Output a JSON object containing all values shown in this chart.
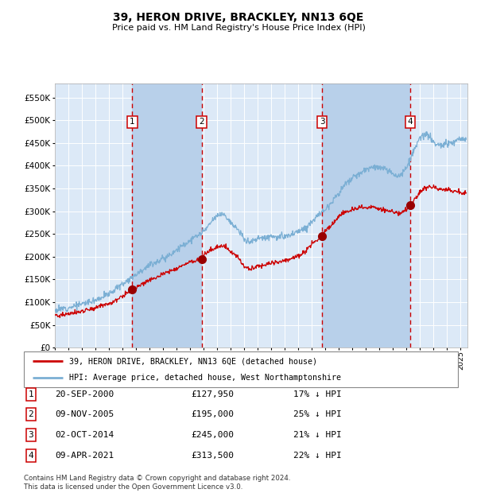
{
  "title": "39, HERON DRIVE, BRACKLEY, NN13 6QE",
  "subtitle": "Price paid vs. HM Land Registry's House Price Index (HPI)",
  "background_color": "#ffffff",
  "plot_bg_color": "#dce9f7",
  "grid_color": "#ffffff",
  "hpi_line_color": "#7bafd4",
  "price_line_color": "#cc0000",
  "marker_color": "#990000",
  "vline_color": "#cc0000",
  "shade_color": "#b8d0ea",
  "purchases": [
    {
      "num": 1,
      "date_x": 2000.72,
      "price": 127950,
      "label": "20-SEP-2000",
      "pct": "17%"
    },
    {
      "num": 2,
      "date_x": 2005.85,
      "price": 195000,
      "label": "09-NOV-2005",
      "pct": "25%"
    },
    {
      "num": 3,
      "date_x": 2014.75,
      "price": 245000,
      "label": "02-OCT-2014",
      "pct": "21%"
    },
    {
      "num": 4,
      "date_x": 2021.27,
      "price": 313500,
      "label": "09-APR-2021",
      "pct": "22%"
    }
  ],
  "legend1": "39, HERON DRIVE, BRACKLEY, NN13 6QE (detached house)",
  "legend2": "HPI: Average price, detached house, West Northamptonshire",
  "footer": "Contains HM Land Registry data © Crown copyright and database right 2024.\nThis data is licensed under the Open Government Licence v3.0.",
  "xmin": 1995.0,
  "xmax": 2025.5,
  "ymin": 0,
  "ymax": 580000,
  "yticks": [
    0,
    50000,
    100000,
    150000,
    200000,
    250000,
    300000,
    350000,
    400000,
    450000,
    500000,
    550000
  ],
  "xticks": [
    1995,
    1996,
    1997,
    1998,
    1999,
    2000,
    2001,
    2002,
    2003,
    2004,
    2005,
    2006,
    2007,
    2008,
    2009,
    2010,
    2011,
    2012,
    2013,
    2014,
    2015,
    2016,
    2017,
    2018,
    2019,
    2020,
    2021,
    2022,
    2023,
    2024,
    2025
  ],
  "hpi_anchors_x": [
    1995,
    1996,
    1997,
    1998,
    1999,
    2000,
    2001,
    2002,
    2003,
    2004,
    2005,
    2006,
    2007,
    2007.5,
    2008,
    2008.5,
    2009,
    2009.5,
    2010,
    2010.5,
    2011,
    2011.5,
    2012,
    2012.5,
    2013,
    2013.5,
    2014,
    2015,
    2016,
    2016.5,
    2017,
    2017.5,
    2018,
    2018.5,
    2019,
    2019.5,
    2020,
    2020.5,
    2021,
    2021.5,
    2022,
    2022.3,
    2022.7,
    2023,
    2023.5,
    2024,
    2024.5,
    2025
  ],
  "hpi_anchors_y": [
    82000,
    88000,
    96000,
    105000,
    118000,
    140000,
    162000,
    182000,
    195000,
    215000,
    235000,
    255000,
    290000,
    295000,
    275000,
    260000,
    238000,
    232000,
    240000,
    242000,
    245000,
    242000,
    244000,
    248000,
    255000,
    262000,
    278000,
    305000,
    340000,
    360000,
    372000,
    382000,
    390000,
    398000,
    395000,
    390000,
    382000,
    378000,
    395000,
    430000,
    460000,
    468000,
    465000,
    448000,
    445000,
    448000,
    452000,
    458000
  ],
  "red_anchors_x": [
    1995,
    1996,
    1997,
    1998,
    1999,
    2000,
    2000.72,
    2001,
    2002,
    2003,
    2004,
    2005,
    2005.85,
    2006,
    2007,
    2007.5,
    2008,
    2008.5,
    2009,
    2009.5,
    2010,
    2010.5,
    2011,
    2011.5,
    2012,
    2012.5,
    2013,
    2013.5,
    2014,
    2014.75,
    2015,
    2015.5,
    2016,
    2016.5,
    2017,
    2017.5,
    2018,
    2018.5,
    2019,
    2019.5,
    2020,
    2020.5,
    2021,
    2021.27,
    2022,
    2022.3,
    2022.7,
    2023,
    2023.5,
    2024,
    2024.5,
    2025
  ],
  "red_anchors_y": [
    70000,
    74000,
    80000,
    88000,
    97000,
    112000,
    127950,
    132000,
    148000,
    162000,
    175000,
    188000,
    195000,
    205000,
    222000,
    225000,
    210000,
    200000,
    178000,
    172000,
    180000,
    182000,
    186000,
    188000,
    192000,
    196000,
    202000,
    210000,
    228000,
    245000,
    258000,
    270000,
    290000,
    298000,
    302000,
    308000,
    308000,
    310000,
    305000,
    302000,
    298000,
    296000,
    305000,
    313500,
    342000,
    350000,
    355000,
    352000,
    348000,
    347000,
    344000,
    340000
  ]
}
